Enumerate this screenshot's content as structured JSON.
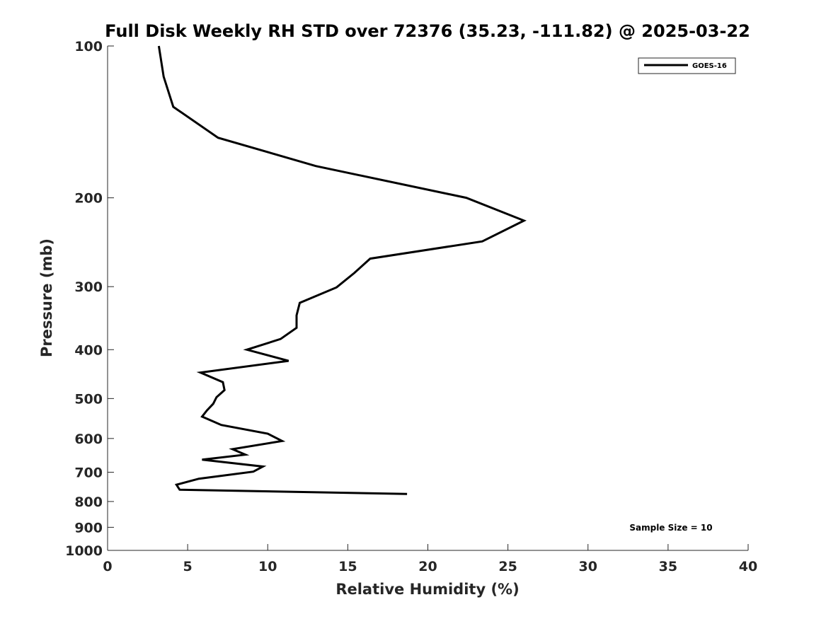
{
  "chart_data": {
    "type": "line",
    "title": "Full Disk Weekly RH STD over 72376 (35.23, -111.82) @ 2025-03-22",
    "xlabel": "Relative Humidity (%)",
    "ylabel": "Pressure (mb)",
    "xlim": [
      0,
      40
    ],
    "ylim": [
      1000,
      100
    ],
    "y_scale": "log",
    "y_inverted": true,
    "grid": false,
    "legend_position": "top-right",
    "x_ticks": [
      0,
      5,
      10,
      15,
      20,
      25,
      30,
      35,
      40
    ],
    "y_ticks": [
      100,
      200,
      300,
      400,
      500,
      600,
      700,
      800,
      900,
      1000
    ],
    "series": [
      {
        "name": "GOES-16",
        "color": "#000000",
        "x": [
          3.2,
          3.5,
          4.1,
          6.9,
          13.0,
          22.4,
          26.0,
          23.4,
          16.4,
          15.4,
          14.3,
          12.0,
          11.8,
          11.8,
          10.8,
          8.7,
          11.3,
          5.8,
          7.2,
          7.3,
          6.8,
          6.6,
          6.2,
          5.9,
          7.1,
          10.0,
          10.9,
          7.8,
          8.6,
          5.9,
          9.7,
          9.1,
          5.7,
          4.3,
          4.5,
          18.7
        ],
        "y": [
          100,
          115,
          132,
          152,
          173,
          200,
          222,
          244,
          264,
          282,
          301,
          323,
          342,
          362,
          381,
          400,
          421,
          444,
          464,
          481,
          497,
          512,
          528,
          543,
          564,
          587,
          607,
          630,
          646,
          661,
          682,
          698,
          721,
          741,
          758,
          773
        ]
      }
    ],
    "annotations": [
      "Sample Size = 10"
    ]
  }
}
